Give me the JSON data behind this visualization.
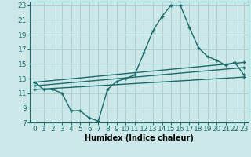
{
  "xlabel": "Humidex (Indice chaleur)",
  "bg_color": "#cce8e8",
  "grid_color": "#aacccc",
  "line_color": "#1a6b6b",
  "xlim": [
    -0.5,
    23.5
  ],
  "ylim": [
    7,
    23.5
  ],
  "xticks": [
    0,
    1,
    2,
    3,
    4,
    5,
    6,
    7,
    8,
    9,
    10,
    11,
    12,
    13,
    14,
    15,
    16,
    17,
    18,
    19,
    20,
    21,
    22,
    23
  ],
  "yticks": [
    7,
    9,
    11,
    13,
    15,
    17,
    19,
    21,
    23
  ],
  "main_x": [
    0,
    1,
    2,
    3,
    4,
    5,
    6,
    7,
    8,
    9,
    10,
    11,
    12,
    13,
    14,
    15,
    16,
    17,
    18,
    19,
    20,
    21,
    22,
    23
  ],
  "main_y": [
    12.5,
    11.5,
    11.5,
    11.0,
    8.6,
    8.6,
    7.6,
    7.2,
    11.5,
    12.6,
    13.0,
    13.5,
    16.5,
    19.5,
    21.5,
    23.0,
    23.0,
    20.0,
    17.2,
    16.0,
    15.5,
    14.8,
    15.2,
    13.5
  ],
  "line2_x": [
    0,
    23
  ],
  "line2_y": [
    12.5,
    15.2
  ],
  "line3_x": [
    0,
    23
  ],
  "line3_y": [
    12.0,
    14.5
  ],
  "line4_x": [
    0,
    23
  ],
  "line4_y": [
    11.5,
    13.2
  ],
  "marker_size": 3.0,
  "linewidth": 1.0,
  "xlabel_fontsize": 7,
  "tick_fontsize": 6.5
}
